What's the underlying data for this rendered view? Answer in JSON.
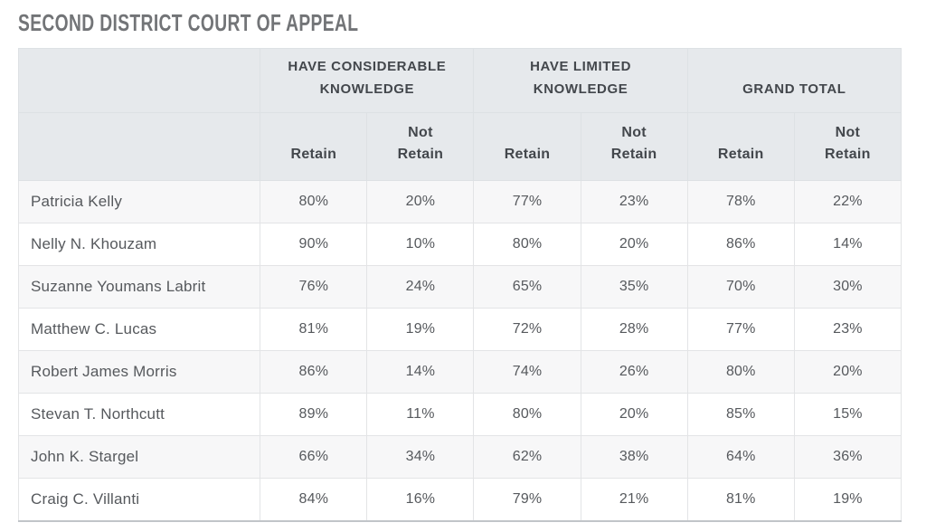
{
  "page_title": "SECOND DISTRICT COURT OF APPEAL",
  "table": {
    "column_groups": [
      {
        "label": "HAVE CONSIDERABLE KNOWLEDGE"
      },
      {
        "label": "HAVE LIMITED KNOWLEDGE"
      },
      {
        "label": "GRAND TOTAL"
      }
    ],
    "sub_headers": {
      "retain": "Retain",
      "not_retain": "Not Retain"
    },
    "rows": [
      {
        "name": "Patricia Kelly",
        "values": [
          "80%",
          "20%",
          "77%",
          "23%",
          "78%",
          "22%"
        ]
      },
      {
        "name": "Nelly N. Khouzam",
        "values": [
          "90%",
          "10%",
          "80%",
          "20%",
          "86%",
          "14%"
        ]
      },
      {
        "name": "Suzanne Youmans Labrit",
        "values": [
          "76%",
          "24%",
          "65%",
          "35%",
          "70%",
          "30%"
        ]
      },
      {
        "name": "Matthew C. Lucas",
        "values": [
          "81%",
          "19%",
          "72%",
          "28%",
          "77%",
          "23%"
        ]
      },
      {
        "name": "Robert James Morris",
        "values": [
          "86%",
          "14%",
          "74%",
          "26%",
          "80%",
          "20%"
        ]
      },
      {
        "name": "Stevan T. Northcutt",
        "values": [
          "89%",
          "11%",
          "80%",
          "20%",
          "85%",
          "15%"
        ]
      },
      {
        "name": "John K. Stargel",
        "values": [
          "66%",
          "34%",
          "62%",
          "38%",
          "64%",
          "36%"
        ]
      },
      {
        "name": "Craig C. Villanti",
        "values": [
          "84%",
          "16%",
          "79%",
          "21%",
          "81%",
          "19%"
        ]
      }
    ]
  },
  "colors": {
    "header_bg": "#e6e9ec",
    "row_stripe": "#f7f7f8",
    "row_white": "#ffffff",
    "cell_border": "#e3e4e6",
    "table_bottom_border": "#c1c5c9",
    "header_text": "#43474c",
    "body_text": "#56595d",
    "title_text": "#727477"
  },
  "chart_data": {
    "type": "table",
    "title": "SECOND DISTRICT COURT OF APPEAL",
    "column_groups": [
      "HAVE CONSIDERABLE KNOWLEDGE",
      "HAVE LIMITED KNOWLEDGE",
      "GRAND TOTAL"
    ],
    "columns": [
      "Have Considerable Knowledge - Retain",
      "Have Considerable Knowledge - Not Retain",
      "Have Limited Knowledge - Retain",
      "Have Limited Knowledge - Not Retain",
      "Grand Total - Retain",
      "Grand Total - Not Retain"
    ],
    "unit": "%",
    "rows": [
      {
        "name": "Patricia Kelly",
        "values": [
          80,
          20,
          77,
          23,
          78,
          22
        ]
      },
      {
        "name": "Nelly N. Khouzam",
        "values": [
          90,
          10,
          80,
          20,
          86,
          14
        ]
      },
      {
        "name": "Suzanne Youmans Labrit",
        "values": [
          76,
          24,
          65,
          35,
          70,
          30
        ]
      },
      {
        "name": "Matthew C. Lucas",
        "values": [
          81,
          19,
          72,
          28,
          77,
          23
        ]
      },
      {
        "name": "Robert James Morris",
        "values": [
          86,
          14,
          74,
          26,
          80,
          20
        ]
      },
      {
        "name": "Stevan T. Northcutt",
        "values": [
          89,
          11,
          80,
          20,
          85,
          15
        ]
      },
      {
        "name": "John K. Stargel",
        "values": [
          66,
          34,
          62,
          38,
          64,
          36
        ]
      },
      {
        "name": "Craig C. Villanti",
        "values": [
          84,
          16,
          79,
          21,
          81,
          19
        ]
      }
    ]
  }
}
